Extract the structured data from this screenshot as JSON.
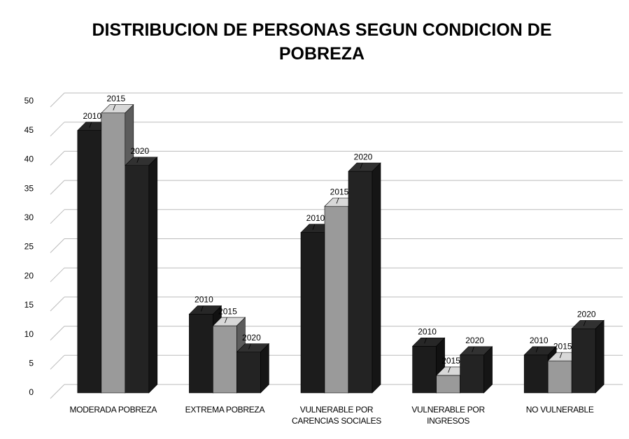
{
  "chart_data": {
    "type": "bar3d",
    "title": "DISTRIBUCION DE PERSONAS SEGUN CONDICION DE POBREZA",
    "categories": [
      "MODERADA POBREZA",
      "EXTREMA POBREZA",
      "VULNERABLE POR CARENCIAS SOCIALES",
      "VULNERABLE POR INGRESOS",
      "NO VULNERABLE"
    ],
    "series": [
      {
        "name": "2010",
        "color": "#1c1c1c",
        "values": [
          45,
          13.5,
          27.5,
          8,
          6.5
        ]
      },
      {
        "name": "2015",
        "color": "#9a9a9a",
        "values": [
          48,
          11.5,
          32,
          3,
          5.5
        ]
      },
      {
        "name": "2020",
        "color": "#232323",
        "values": [
          39,
          7,
          38,
          6.5,
          11
        ]
      }
    ],
    "ylim": [
      0,
      50
    ],
    "yticks": [
      0,
      5,
      10,
      15,
      20,
      25,
      30,
      35,
      40,
      45,
      50
    ],
    "grid": true
  }
}
